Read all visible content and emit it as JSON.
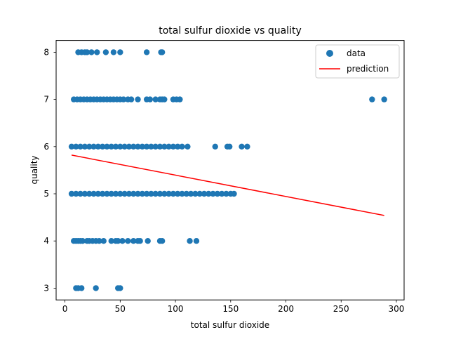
{
  "chart_data": {
    "type": "scatter",
    "title": "total sulfur dioxide vs quality",
    "xlabel": "total sulfur dioxide",
    "ylabel": "quality",
    "xlim": [
      -8,
      307
    ],
    "ylim": [
      2.75,
      8.25
    ],
    "xticks": [
      0,
      50,
      100,
      150,
      200,
      250,
      300
    ],
    "yticks": [
      3,
      4,
      5,
      6,
      7,
      8
    ],
    "grid": false,
    "legend": {
      "position": "top-right",
      "entries": [
        "data",
        "prediction"
      ]
    },
    "series": [
      {
        "name": "data",
        "kind": "scatter",
        "color": "#1f77b4",
        "points": [
          [
            10,
            3
          ],
          [
            12,
            3
          ],
          [
            15,
            3
          ],
          [
            28,
            3
          ],
          [
            48,
            3
          ],
          [
            50,
            3
          ],
          [
            8,
            4
          ],
          [
            10,
            4
          ],
          [
            12,
            4
          ],
          [
            14,
            4
          ],
          [
            16,
            4
          ],
          [
            20,
            4
          ],
          [
            22,
            4
          ],
          [
            25,
            4
          ],
          [
            28,
            4
          ],
          [
            31,
            4
          ],
          [
            35,
            4
          ],
          [
            42,
            4
          ],
          [
            46,
            4
          ],
          [
            48,
            4
          ],
          [
            52,
            4
          ],
          [
            57,
            4
          ],
          [
            62,
            4
          ],
          [
            66,
            4
          ],
          [
            68,
            4
          ],
          [
            75,
            4
          ],
          [
            86,
            4
          ],
          [
            88,
            4
          ],
          [
            113,
            4
          ],
          [
            119,
            4
          ],
          [
            6,
            5
          ],
          [
            10,
            5
          ],
          [
            14,
            5
          ],
          [
            18,
            5
          ],
          [
            22,
            5
          ],
          [
            26,
            5
          ],
          [
            30,
            5
          ],
          [
            34,
            5
          ],
          [
            38,
            5
          ],
          [
            42,
            5
          ],
          [
            46,
            5
          ],
          [
            50,
            5
          ],
          [
            54,
            5
          ],
          [
            58,
            5
          ],
          [
            62,
            5
          ],
          [
            66,
            5
          ],
          [
            70,
            5
          ],
          [
            74,
            5
          ],
          [
            78,
            5
          ],
          [
            82,
            5
          ],
          [
            86,
            5
          ],
          [
            90,
            5
          ],
          [
            94,
            5
          ],
          [
            98,
            5
          ],
          [
            102,
            5
          ],
          [
            106,
            5
          ],
          [
            110,
            5
          ],
          [
            114,
            5
          ],
          [
            118,
            5
          ],
          [
            122,
            5
          ],
          [
            126,
            5
          ],
          [
            130,
            5
          ],
          [
            134,
            5
          ],
          [
            138,
            5
          ],
          [
            142,
            5
          ],
          [
            146,
            5
          ],
          [
            150,
            5
          ],
          [
            153,
            5
          ],
          [
            6,
            6
          ],
          [
            10,
            6
          ],
          [
            14,
            6
          ],
          [
            18,
            6
          ],
          [
            22,
            6
          ],
          [
            26,
            6
          ],
          [
            30,
            6
          ],
          [
            34,
            6
          ],
          [
            38,
            6
          ],
          [
            42,
            6
          ],
          [
            46,
            6
          ],
          [
            50,
            6
          ],
          [
            54,
            6
          ],
          [
            58,
            6
          ],
          [
            62,
            6
          ],
          [
            66,
            6
          ],
          [
            70,
            6
          ],
          [
            74,
            6
          ],
          [
            78,
            6
          ],
          [
            82,
            6
          ],
          [
            86,
            6
          ],
          [
            90,
            6
          ],
          [
            94,
            6
          ],
          [
            98,
            6
          ],
          [
            102,
            6
          ],
          [
            106,
            6
          ],
          [
            111,
            6
          ],
          [
            136,
            6
          ],
          [
            147,
            6
          ],
          [
            149,
            6
          ],
          [
            160,
            6
          ],
          [
            165,
            6
          ],
          [
            8,
            7
          ],
          [
            11,
            7
          ],
          [
            14,
            7
          ],
          [
            17,
            7
          ],
          [
            20,
            7
          ],
          [
            23,
            7
          ],
          [
            26,
            7
          ],
          [
            29,
            7
          ],
          [
            32,
            7
          ],
          [
            35,
            7
          ],
          [
            38,
            7
          ],
          [
            41,
            7
          ],
          [
            44,
            7
          ],
          [
            47,
            7
          ],
          [
            50,
            7
          ],
          [
            53,
            7
          ],
          [
            57,
            7
          ],
          [
            60,
            7
          ],
          [
            66,
            7
          ],
          [
            74,
            7
          ],
          [
            77,
            7
          ],
          [
            82,
            7
          ],
          [
            86,
            7
          ],
          [
            88,
            7
          ],
          [
            90,
            7
          ],
          [
            98,
            7
          ],
          [
            101,
            7
          ],
          [
            104,
            7
          ],
          [
            278,
            7
          ],
          [
            289,
            7
          ],
          [
            12,
            8
          ],
          [
            15,
            8
          ],
          [
            18,
            8
          ],
          [
            20,
            8
          ],
          [
            24,
            8
          ],
          [
            29,
            8
          ],
          [
            37,
            8
          ],
          [
            44,
            8
          ],
          [
            50,
            8
          ],
          [
            74,
            8
          ],
          [
            87,
            8
          ],
          [
            88,
            8
          ]
        ]
      },
      {
        "name": "prediction",
        "kind": "line",
        "color": "#ff0000",
        "points": [
          [
            6,
            5.82
          ],
          [
            289,
            4.54
          ]
        ]
      }
    ]
  }
}
